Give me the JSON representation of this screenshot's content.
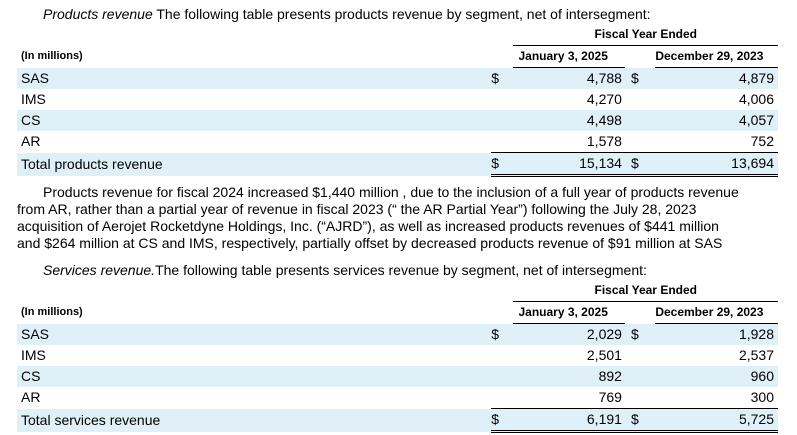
{
  "products": {
    "intro_italic": "Products revenue",
    "intro_rest": " The following table presents products revenue by segment, net of intersegment:",
    "header_period": "Fiscal Year Ended",
    "unit": "(In millions)",
    "col1": "January 3, 2025",
    "col2": "December 29, 2023",
    "rows": [
      {
        "label": "SAS",
        "d1": "$",
        "v1": "4,788",
        "d2": "$",
        "v2": "4,879"
      },
      {
        "label": "IMS",
        "d1": "",
        "v1": "4,270",
        "d2": "",
        "v2": "4,006"
      },
      {
        "label": "CS",
        "d1": "",
        "v1": "4,498",
        "d2": "",
        "v2": "4,057"
      },
      {
        "label": "AR",
        "d1": "",
        "v1": "1,578",
        "d2": "",
        "v2": "752"
      }
    ],
    "total": {
      "label": "Total products revenue",
      "d1": "$",
      "v1": "15,134",
      "d2": "$",
      "v2": "13,694"
    }
  },
  "paragraph": {
    "lines": [
      "Products revenue for fiscal 2024 increased $1,440 million , due to the inclusion of a full year of products revenue",
      "from AR, rather than a partial year of revenue in fiscal 2023 (“ the AR Partial Year”) following the  July 28, 2023",
      "acquisition of Aerojet Rocketdyne Holdings, Inc. (“AJRD”), as well as increased products revenues of $441 million",
      "and $264 million  at CS and IMS, respectively, partially offset by decreased products revenue of  $91 million  at SAS"
    ]
  },
  "services": {
    "intro_italic": "Services revenue.",
    "intro_rest": "The following table presents services revenue by segment, net of intersegment:",
    "header_period": "Fiscal Year Ended",
    "unit": "(In millions)",
    "col1": "January 3, 2025",
    "col2": "December 29, 2023",
    "rows": [
      {
        "label": "SAS",
        "d1": "$",
        "v1": "2,029",
        "d2": "$",
        "v2": "1,928"
      },
      {
        "label": "IMS",
        "d1": "",
        "v1": "2,501",
        "d2": "",
        "v2": "2,537"
      },
      {
        "label": "CS",
        "d1": "",
        "v1": "892",
        "d2": "",
        "v2": "960"
      },
      {
        "label": "AR",
        "d1": "",
        "v1": "769",
        "d2": "",
        "v2": "300"
      }
    ],
    "total": {
      "label": "Total services revenue",
      "d1": "$",
      "v1": "6,191",
      "d2": "$",
      "v2": "5,725"
    }
  }
}
